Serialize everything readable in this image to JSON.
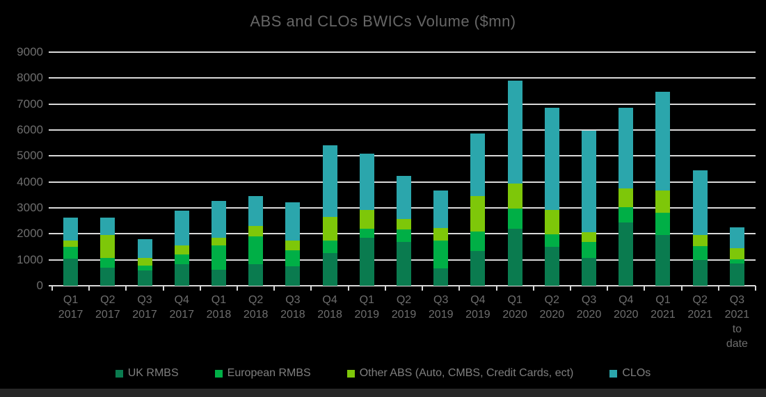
{
  "title": "ABS and CLOs BWICs Volume ($mn)",
  "colors": {
    "background": "#000000",
    "title_text": "#666666",
    "axis_text": "#6E6E6E",
    "gridline": "#D9D9D9",
    "legend_text": "#7F7F7F",
    "footer_strip": "#272727",
    "uk_rmbs": "#0A7B4F",
    "european_rmbs": "#00AF46",
    "other_abs": "#7EC709",
    "clos": "#2BA6AC"
  },
  "legend": [
    {
      "label": "UK RMBS",
      "color": "#0A7B4F"
    },
    {
      "label": "European RMBS",
      "color": "#00AF46"
    },
    {
      "label": "Other ABS (Auto, CMBS, Credit Cards, ect)",
      "color": "#7EC709"
    },
    {
      "label": "CLOs",
      "color": "#2BA6AC"
    }
  ],
  "chart_data": {
    "type": "bar",
    "stacked": true,
    "title": "ABS and CLOs BWICs Volume ($mn)",
    "xlabel": "",
    "ylabel": "",
    "ylim": [
      0,
      9000
    ],
    "yticks": [
      0,
      1000,
      2000,
      3000,
      4000,
      5000,
      6000,
      7000,
      8000,
      9000
    ],
    "grid": true,
    "legend_position": "bottom",
    "categories": [
      "Q1 2017",
      "Q2 2017",
      "Q3 2017",
      "Q4 2017",
      "Q1 2018",
      "Q2 2018",
      "Q3 2018",
      "Q4 2018",
      "Q1 2019",
      "Q2 2019",
      "Q3 2019",
      "Q4 2019",
      "Q1 2020",
      "Q2 2020",
      "Q3 2020",
      "Q4 2020",
      "Q1 2021",
      "Q2 2021",
      "Q3 2021 to date"
    ],
    "series": [
      {
        "name": "UK RMBS",
        "color": "#0A7B4F",
        "values": [
          1050,
          700,
          580,
          820,
          620,
          830,
          740,
          1270,
          1860,
          1690,
          675,
          1330,
          2190,
          1490,
          1075,
          2450,
          1960,
          980,
          850
        ]
      },
      {
        "name": "European RMBS",
        "color": "#00AF46",
        "values": [
          440,
          375,
          210,
          390,
          930,
          1070,
          620,
          470,
          340,
          480,
          1060,
          750,
          790,
          500,
          620,
          580,
          850,
          550,
          160
        ]
      },
      {
        "name": "Other ABS (Auto, CMBS, Credit Cards, ect)",
        "color": "#7EC709",
        "values": [
          250,
          875,
          280,
          350,
          290,
          410,
          380,
          910,
          730,
          410,
          480,
          1380,
          960,
          940,
          355,
          730,
          870,
          430,
          430
        ]
      },
      {
        "name": "CLOs",
        "color": "#2BA6AC",
        "values": [
          890,
          680,
          730,
          1340,
          1430,
          1140,
          1470,
          2750,
          2170,
          1650,
          1450,
          2400,
          3970,
          3920,
          3930,
          3090,
          3800,
          2480,
          810
        ]
      }
    ],
    "totals": [
      2630,
      2630,
      1800,
      2900,
      3270,
      3450,
      3210,
      5400,
      5100,
      4230,
      3665,
      5860,
      7910,
      6850,
      5980,
      6850,
      7480,
      4440,
      2250
    ]
  }
}
